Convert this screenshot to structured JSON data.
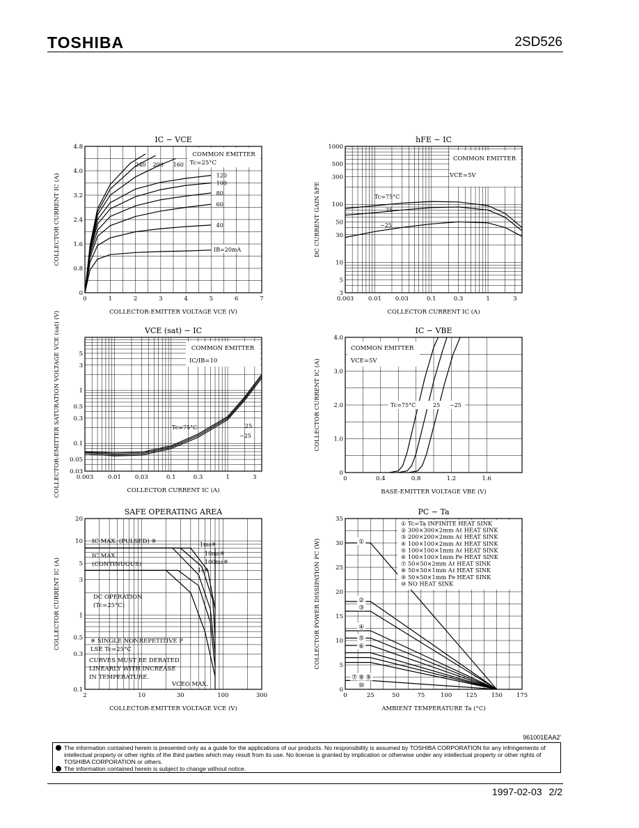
{
  "header": {
    "brand": "TOSHIBA",
    "part_number": "2SD526"
  },
  "footer": {
    "code": "961001EAA2'",
    "date": "1997-02-03",
    "page": "2/2"
  },
  "notice": [
    "The information contained herein is presented only as a guide for the applications of our products. No responsibility is assumed by TOSHIBA CORPORATION for any infringements of intellectual property or other rights of the third parties which may result from its use. No license is granted by implication or otherwise under any intellectual property or other rights of TOSHIBA CORPORATION or others.",
    "The information contained herein is subject to change without notice."
  ],
  "chart_data": [
    {
      "type": "line",
      "title": "IC − VCE",
      "xlabel": "COLLECTOR-EMITTER VOLTAGE   VCE   (V)",
      "ylabel": "COLLECTOR CURRENT   IC   (A)",
      "xlim": [
        0,
        7
      ],
      "ylim": [
        0,
        4.8
      ],
      "xticks": [
        "0",
        "1",
        "2",
        "3",
        "4",
        "5",
        "6",
        "7"
      ],
      "yticks": [
        "0",
        "0.8",
        "1.6",
        "2.4",
        "3.2",
        "4.0",
        "4.8"
      ],
      "legend": "COMMON EMITTER  Tc=25°C",
      "series": [
        {
          "name": "IB=20mA",
          "x": [
            0,
            0.2,
            0.5,
            1,
            2,
            3,
            4,
            5
          ],
          "y": [
            0,
            0.75,
            1.1,
            1.25,
            1.32,
            1.35,
            1.37,
            1.4
          ]
        },
        {
          "name": "40",
          "x": [
            0,
            0.2,
            0.5,
            1,
            2,
            3,
            4,
            5
          ],
          "y": [
            0,
            1.0,
            1.55,
            1.8,
            2.0,
            2.1,
            2.17,
            2.22
          ]
        },
        {
          "name": "60",
          "x": [
            0,
            0.2,
            0.5,
            1,
            2,
            3,
            4,
            5
          ],
          "y": [
            0,
            1.15,
            1.85,
            2.2,
            2.5,
            2.68,
            2.8,
            2.9
          ]
        },
        {
          "name": "80",
          "x": [
            0,
            0.2,
            0.5,
            1,
            2,
            3,
            4,
            5
          ],
          "y": [
            0,
            1.25,
            2.05,
            2.5,
            2.85,
            3.05,
            3.17,
            3.27
          ]
        },
        {
          "name": "100",
          "x": [
            0,
            0.2,
            0.5,
            1,
            2,
            3,
            4,
            5
          ],
          "y": [
            0,
            1.35,
            2.25,
            2.75,
            3.15,
            3.38,
            3.52,
            3.6
          ]
        },
        {
          "name": "120",
          "x": [
            0,
            0.2,
            0.5,
            1,
            2,
            3,
            4,
            5
          ],
          "y": [
            0,
            1.4,
            2.4,
            2.95,
            3.4,
            3.62,
            3.75,
            3.85
          ]
        },
        {
          "name": "160",
          "x": [
            0,
            0.2,
            0.5,
            1,
            2,
            3,
            3.6
          ],
          "y": [
            0,
            1.45,
            2.55,
            3.2,
            3.8,
            4.2,
            4.4
          ]
        },
        {
          "name": "200",
          "x": [
            0,
            0.2,
            0.5,
            1,
            2,
            2.8
          ],
          "y": [
            0,
            1.5,
            2.65,
            3.4,
            4.15,
            4.5
          ]
        },
        {
          "name": "240",
          "x": [
            0,
            0.2,
            0.5,
            1,
            1.8,
            2.4
          ],
          "y": [
            0,
            1.55,
            2.75,
            3.55,
            4.25,
            4.55
          ]
        }
      ]
    },
    {
      "type": "line",
      "title": "hFE − IC",
      "xlabel": "COLLECTOR CURRENT   IC   (A)",
      "ylabel": "DC CURRENT GAIN   hFE",
      "xscale": "log",
      "yscale": "log",
      "xlim": [
        0.003,
        4
      ],
      "ylim": [
        3,
        1000
      ],
      "xticks": [
        "0.003",
        "0.01",
        "0.03",
        "0.1",
        "0.3",
        "1",
        "3"
      ],
      "yticks": [
        "3",
        "5",
        "10",
        "30",
        "50",
        "100",
        "300",
        "500",
        "1000"
      ],
      "legend": "COMMON EMITTER  VCE=5V",
      "series": [
        {
          "name": "Tc=75°C",
          "x": [
            0.003,
            0.01,
            0.03,
            0.1,
            0.3,
            1,
            2,
            4
          ],
          "y": [
            85,
            95,
            105,
            112,
            110,
            95,
            70,
            40
          ]
        },
        {
          "name": "25",
          "x": [
            0.003,
            0.01,
            0.03,
            0.1,
            0.3,
            1,
            2,
            4
          ],
          "y": [
            65,
            72,
            80,
            88,
            90,
            80,
            60,
            35
          ]
        },
        {
          "name": "−25",
          "x": [
            0.003,
            0.01,
            0.03,
            0.1,
            0.3,
            1,
            2,
            4
          ],
          "y": [
            27,
            34,
            40,
            46,
            50,
            48,
            40,
            28
          ]
        }
      ]
    },
    {
      "type": "line",
      "title": "VCE (sat) − IC",
      "xlabel": "COLLECTOR CURRENT   IC   (A)",
      "ylabel": "COLLECTOR-EMITTER SATURATION VOLTAGE   VCE (sat)   (V)",
      "xscale": "log",
      "yscale": "log",
      "xlim": [
        0.003,
        4
      ],
      "ylim": [
        0.03,
        10
      ],
      "xticks": [
        "0.003",
        "0.01",
        "0.03",
        "0.1",
        "0.3",
        "1",
        "3"
      ],
      "yticks": [
        "0.03",
        "0.05",
        "0.1",
        "0.3",
        "0.5",
        "1",
        "3",
        "5"
      ],
      "legend": "COMMON EMITTER  IC/IB=10",
      "series": [
        {
          "name": "Tc=75°C",
          "x": [
            0.003,
            0.01,
            0.03,
            0.1,
            0.3,
            1,
            2,
            4
          ],
          "y": [
            0.07,
            0.066,
            0.068,
            0.09,
            0.15,
            0.32,
            0.75,
            2.0
          ]
        },
        {
          "name": "25",
          "x": [
            0.003,
            0.01,
            0.03,
            0.1,
            0.3,
            1,
            2,
            4
          ],
          "y": [
            0.068,
            0.062,
            0.064,
            0.085,
            0.14,
            0.3,
            0.7,
            1.85
          ]
        },
        {
          "name": "−25",
          "x": [
            0.003,
            0.01,
            0.03,
            0.1,
            0.3,
            1,
            2,
            4
          ],
          "y": [
            0.064,
            0.058,
            0.06,
            0.08,
            0.13,
            0.28,
            0.65,
            1.7
          ]
        }
      ]
    },
    {
      "type": "line",
      "title": "IC − VBE",
      "xlabel": "BASE-EMITTER VOLTAGE   VBE   (V)",
      "ylabel": "COLLECTOR CURRENT   IC   (A)",
      "xlim": [
        0,
        2.0
      ],
      "ylim": [
        0,
        4.0
      ],
      "xticks": [
        "0",
        "0.4",
        "0.8",
        "1.2",
        "1.6"
      ],
      "yticks": [
        "0",
        "1.0",
        "2.0",
        "3.0",
        "4.0"
      ],
      "legend": "COMMON EMITTER  VCE=5V",
      "series": [
        {
          "name": "Tc=75°C",
          "x": [
            0.5,
            0.6,
            0.65,
            0.7,
            0.8,
            0.9,
            1.0,
            1.05
          ],
          "y": [
            0,
            0.05,
            0.2,
            0.6,
            1.7,
            2.8,
            3.7,
            4.0
          ]
        },
        {
          "name": "25",
          "x": [
            0.6,
            0.7,
            0.75,
            0.8,
            0.9,
            1.0,
            1.1,
            1.15
          ],
          "y": [
            0,
            0.05,
            0.2,
            0.55,
            1.6,
            2.7,
            3.6,
            4.0
          ]
        },
        {
          "name": "−25",
          "x": [
            0.72,
            0.82,
            0.87,
            0.92,
            1.02,
            1.12,
            1.22,
            1.3
          ],
          "y": [
            0,
            0.05,
            0.2,
            0.55,
            1.55,
            2.6,
            3.5,
            4.0
          ]
        }
      ]
    },
    {
      "type": "line",
      "title": "SAFE OPERATING AREA",
      "xlabel": "COLLECTOR-EMITTER VOLTAGE   VCE   (V)",
      "ylabel": "COLLECTOR CURRENT   IC   (A)",
      "xscale": "log",
      "yscale": "log",
      "xlim": [
        2,
        300
      ],
      "ylim": [
        0.1,
        20
      ],
      "xticks": [
        "2",
        "10",
        "30",
        "100",
        "300"
      ],
      "yticks": [
        "0.1",
        "0.3",
        "0.5",
        "1",
        "3",
        "5",
        "10",
        "20"
      ],
      "annotations": [
        "IC MAX. (PULSED) ※",
        "IC MAX. (CONTINUOUS)",
        "DC OPERATION (Tc=25°C)",
        "※ SINGLE NONREPETITIVE PULSE Tc=25°C",
        "CURVES MUST BE DERATED LINEARLY WITH INCREASE IN TEMPERATURE.",
        "VCEO MAX.",
        "1ms※",
        "10ms※",
        "100ms※",
        "1s※"
      ],
      "series": [
        {
          "name": "DC OPERATION",
          "x": [
            2,
            20,
            40,
            60,
            80
          ],
          "y": [
            4,
            4,
            2,
            0.6,
            0.15
          ]
        },
        {
          "name": "1s※",
          "x": [
            2,
            28,
            50,
            70,
            80
          ],
          "y": [
            4,
            4,
            2.5,
            0.8,
            0.2
          ]
        },
        {
          "name": "100ms※",
          "x": [
            2,
            24,
            50,
            70,
            80
          ],
          "y": [
            8,
            8,
            3.5,
            1.2,
            0.3
          ]
        },
        {
          "name": "10ms※",
          "x": [
            2,
            30,
            55,
            75,
            80
          ],
          "y": [
            8,
            8,
            4.5,
            1.6,
            0.5
          ]
        },
        {
          "name": "1ms※",
          "x": [
            2,
            40,
            65,
            80
          ],
          "y": [
            8,
            8,
            4,
            1.2
          ]
        },
        {
          "name": "VCEO MAX.",
          "x": [
            80,
            80
          ],
          "y": [
            0.1,
            8
          ]
        }
      ]
    },
    {
      "type": "line",
      "title": "PC − Ta",
      "xlabel": "AMBIENT TEMPERATURE   Ta   (°C)",
      "ylabel": "COLLECTOR POWER DISSIPATION   PC   (W)",
      "xlim": [
        0,
        175
      ],
      "ylim": [
        0,
        35
      ],
      "xticks": [
        "0",
        "25",
        "50",
        "75",
        "100",
        "125",
        "150",
        "175"
      ],
      "yticks": [
        "0",
        "5",
        "10",
        "15",
        "20",
        "25",
        "30",
        "35"
      ],
      "legend_entries": [
        "① Tc=Ta INFINITE HEAT SINK",
        "② 300×300×2mm Aℓ HEAT SINK",
        "③ 200×200×2mm Aℓ HEAT SINK",
        "④ 100×100×2mm Aℓ HEAT SINK",
        "⑤ 100×100×1mm Aℓ HEAT SINK",
        "⑥ 100×100×1mm Fe HEAT SINK",
        "⑦ 50×50×2mm Aℓ HEAT SINK",
        "⑧ 50×50×1mm Aℓ HEAT SINK",
        "⑨ 50×50×1mm Fe HEAT SINK",
        "⑩ NO HEAT SINK"
      ],
      "series": [
        {
          "name": "①",
          "x": [
            0,
            25,
            150
          ],
          "y": [
            30,
            30,
            0
          ]
        },
        {
          "name": "②",
          "x": [
            0,
            25,
            150
          ],
          "y": [
            18,
            18,
            0
          ]
        },
        {
          "name": "③",
          "x": [
            0,
            25,
            150
          ],
          "y": [
            16,
            16,
            0
          ]
        },
        {
          "name": "④",
          "x": [
            0,
            25,
            150
          ],
          "y": [
            12,
            12,
            0
          ]
        },
        {
          "name": "⑤",
          "x": [
            0,
            25,
            150
          ],
          "y": [
            10.5,
            10.5,
            0
          ]
        },
        {
          "name": "⑥",
          "x": [
            0,
            25,
            150
          ],
          "y": [
            9,
            9,
            0
          ]
        },
        {
          "name": "⑦",
          "x": [
            0,
            25,
            150
          ],
          "y": [
            7.5,
            7.5,
            0
          ]
        },
        {
          "name": "⑧",
          "x": [
            0,
            25,
            150
          ],
          "y": [
            6.5,
            6.5,
            0
          ]
        },
        {
          "name": "⑨",
          "x": [
            0,
            25,
            150
          ],
          "y": [
            5.5,
            5.5,
            0
          ]
        },
        {
          "name": "⑩",
          "x": [
            0,
            25,
            150
          ],
          "y": [
            1.8,
            1.8,
            0
          ]
        }
      ]
    }
  ]
}
